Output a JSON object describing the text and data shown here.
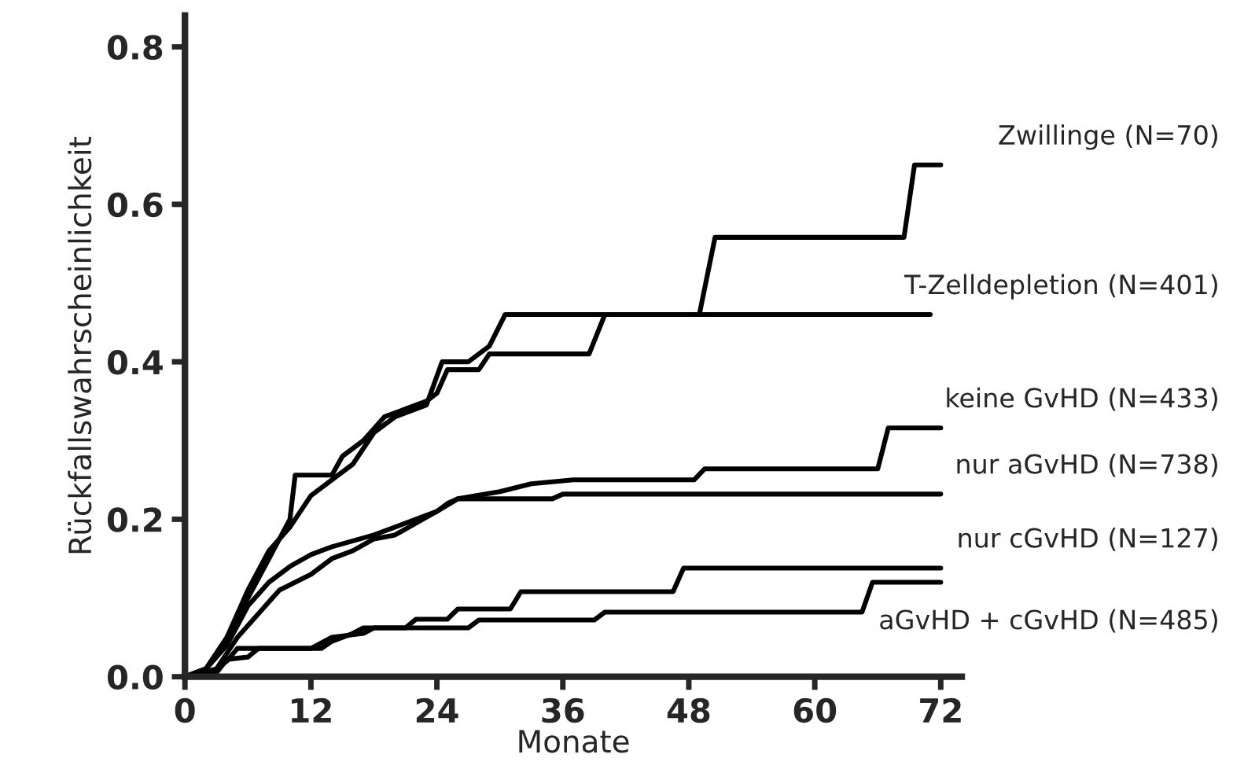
{
  "chart_data": {
    "type": "line",
    "xlabel": "Monate",
    "ylabel": "Rückfallswahrscheinlichkeit",
    "xlim": [
      0,
      74
    ],
    "ylim": [
      0,
      0.84
    ],
    "xticks": [
      0,
      12,
      24,
      36,
      48,
      60,
      72
    ],
    "yticks": [
      {
        "value": 0,
        "label": "0.0"
      },
      {
        "value": 0.2,
        "label": "0.2"
      },
      {
        "value": 0.4,
        "label": "0.4"
      },
      {
        "value": 0.6,
        "label": "0.6"
      },
      {
        "value": 0.8,
        "label": "0.8"
      }
    ],
    "grid": false,
    "legend": false,
    "marker": "none",
    "line_style": "solid",
    "series": [
      {
        "name": "Zwillinge (N=70)",
        "color": "#000000",
        "x": [
          0,
          2,
          4,
          6,
          8,
          10,
          10.5,
          14,
          15,
          17,
          19,
          21,
          23,
          24,
          25,
          28,
          29,
          38.5,
          40,
          49,
          50.5,
          68.5,
          69.5,
          72
        ],
        "values": [
          0,
          0.01,
          0.05,
          0.1,
          0.15,
          0.2,
          0.256,
          0.256,
          0.28,
          0.3,
          0.33,
          0.34,
          0.35,
          0.36,
          0.39,
          0.39,
          0.41,
          0.41,
          0.46,
          0.46,
          0.558,
          0.558,
          0.65,
          0.65
        ]
      },
      {
        "name": "T-Zelldepletion (N=401)",
        "color": "#000000",
        "x": [
          0,
          2,
          4,
          6,
          8,
          10,
          12,
          14,
          16,
          18,
          20,
          22,
          23,
          24.5,
          27,
          29,
          30.5,
          71
        ],
        "values": [
          0,
          0.01,
          0.05,
          0.11,
          0.16,
          0.19,
          0.23,
          0.25,
          0.27,
          0.31,
          0.33,
          0.34,
          0.345,
          0.4,
          0.4,
          0.42,
          0.46,
          0.46
        ]
      },
      {
        "name": "keine GvHD (N=433)",
        "color": "#000000",
        "x": [
          0,
          2,
          4,
          6,
          8,
          10,
          12,
          14,
          18,
          22,
          24,
          26,
          30,
          33,
          37,
          48.5,
          49.5,
          66,
          67,
          72
        ],
        "values": [
          0,
          0.01,
          0.04,
          0.09,
          0.12,
          0.14,
          0.155,
          0.165,
          0.18,
          0.2,
          0.21,
          0.226,
          0.235,
          0.245,
          0.25,
          0.25,
          0.264,
          0.264,
          0.316,
          0.316
        ]
      },
      {
        "name": "nur aGvHD (N=738)",
        "color": "#000000",
        "x": [
          0,
          3,
          5,
          7,
          9,
          12,
          14,
          16,
          18,
          20,
          22,
          24,
          25,
          26,
          35,
          36,
          72
        ],
        "values": [
          0,
          0.01,
          0.05,
          0.08,
          0.11,
          0.13,
          0.15,
          0.16,
          0.175,
          0.18,
          0.195,
          0.21,
          0.22,
          0.226,
          0.226,
          0.232,
          0.232
        ]
      },
      {
        "name": "nur cGvHD (N=127)",
        "color": "#000000",
        "x": [
          0,
          2,
          4,
          5,
          13,
          14,
          16,
          17,
          21,
          22,
          25,
          26,
          31,
          32,
          46.5,
          47.5,
          72
        ],
        "values": [
          0,
          0,
          0.02,
          0.036,
          0.036,
          0.045,
          0.055,
          0.062,
          0.062,
          0.073,
          0.073,
          0.086,
          0.086,
          0.108,
          0.108,
          0.138,
          0.138
        ]
      },
      {
        "name": "aGvHD + cGvHD (N=485)",
        "color": "#000000",
        "x": [
          0,
          3,
          4,
          6,
          7,
          12,
          14,
          17,
          18,
          27,
          28,
          39,
          40,
          64.5,
          65.5,
          72
        ],
        "values": [
          0,
          0.005,
          0.022,
          0.025,
          0.036,
          0.036,
          0.05,
          0.055,
          0.062,
          0.062,
          0.072,
          0.072,
          0.082,
          0.082,
          0.12,
          0.12
        ]
      }
    ]
  }
}
